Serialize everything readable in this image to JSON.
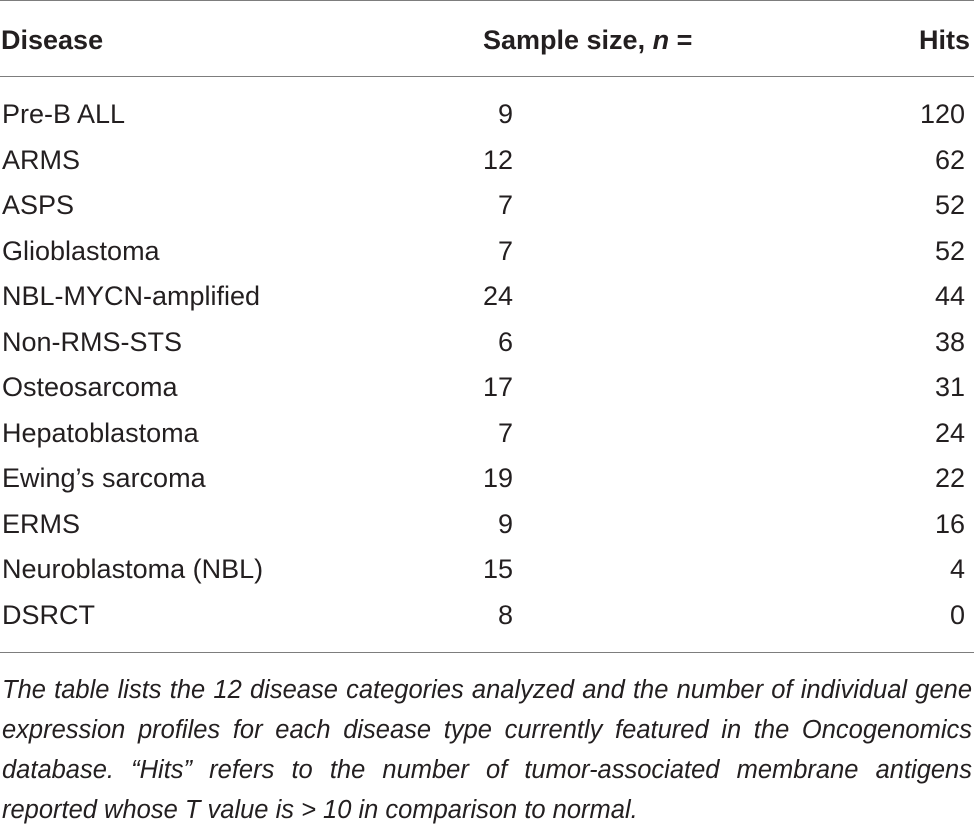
{
  "table": {
    "headers": {
      "disease": "Disease",
      "sample_size_prefix": "Sample size, ",
      "sample_size_var": "n",
      "sample_size_suffix": " =",
      "hits": "Hits"
    },
    "rows": [
      {
        "disease": "Pre-B ALL",
        "n": "9",
        "hits": "120"
      },
      {
        "disease": "ARMS",
        "n": "12",
        "hits": "62"
      },
      {
        "disease": "ASPS",
        "n": "7",
        "hits": "52"
      },
      {
        "disease": "Glioblastoma",
        "n": "7",
        "hits": "52"
      },
      {
        "disease": "NBL-MYCN-amplified",
        "n": "24",
        "hits": "44"
      },
      {
        "disease": "Non-RMS-STS",
        "n": "6",
        "hits": "38"
      },
      {
        "disease": "Osteosarcoma",
        "n": "17",
        "hits": "31"
      },
      {
        "disease": "Hepatoblastoma",
        "n": "7",
        "hits": "24"
      },
      {
        "disease": "Ewing’s sarcoma",
        "n": "19",
        "hits": "22"
      },
      {
        "disease": "ERMS",
        "n": "9",
        "hits": "16"
      },
      {
        "disease": "Neuroblastoma (NBL)",
        "n": "15",
        "hits": "4"
      },
      {
        "disease": "DSRCT",
        "n": "8",
        "hits": "0"
      }
    ]
  },
  "footnote": "The table lists the 12 disease categories analyzed and the number of individual gene expression profiles for each disease type currently featured in the Oncogenomics database. “Hits” refers to the number of tumor-associated membrane antigens reported whose T value is > 10 in comparison to normal."
}
